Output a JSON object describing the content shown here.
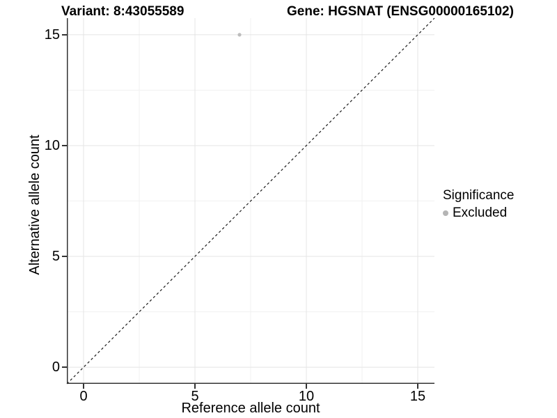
{
  "titles": {
    "variant": "Variant: 8:43055589",
    "gene": "Gene: HGSNAT (ENSG00000165102)"
  },
  "axes": {
    "x": {
      "label": "Reference allele count",
      "ticks": [
        "0",
        "5",
        "10",
        "15"
      ]
    },
    "y": {
      "label": "Alternative allele count",
      "ticks": [
        "0",
        "5",
        "10",
        "15"
      ]
    }
  },
  "legend": {
    "title": "Significance",
    "items": [
      {
        "label": "Excluded",
        "color": "#b5b5b5"
      }
    ]
  },
  "colors": {
    "point": "#bdbdbd",
    "axis": "#333333",
    "grid_major": "#e4e4e4",
    "grid_minor": "#f1f1f1",
    "dashed_line": "#1a1a1a",
    "text": "#000000"
  },
  "chart_data": {
    "type": "scatter",
    "title": "Variant: 8:43055589   Gene: HGSNAT (ENSG00000165102)",
    "xlabel": "Reference allele count",
    "ylabel": "Alternative allele count",
    "xlim": [
      -0.75,
      15.75
    ],
    "ylim": [
      -0.75,
      15.75
    ],
    "x_ticks": [
      0,
      5,
      10,
      15
    ],
    "y_ticks": [
      0,
      5,
      10,
      15
    ],
    "minor_ticks": [
      2.5,
      7.5,
      12.5
    ],
    "grid": "major+minor",
    "legend_position": "right",
    "reference_line": {
      "type": "identity",
      "slope": 1,
      "intercept": 0,
      "style": "dashed"
    },
    "series": [
      {
        "name": "Excluded",
        "color": "#bdbdbd",
        "points": [
          {
            "x": 7,
            "y": 15
          }
        ]
      }
    ]
  }
}
